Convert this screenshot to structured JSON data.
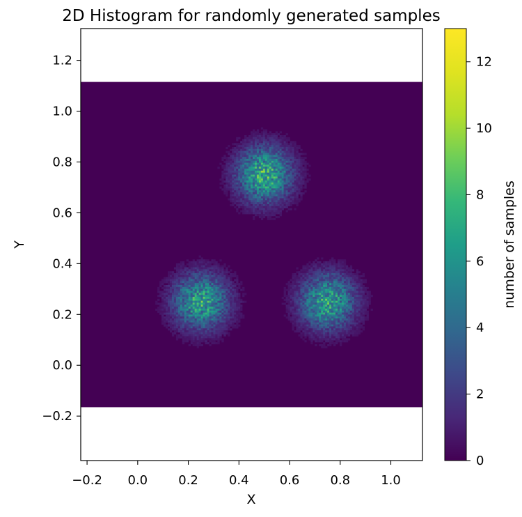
{
  "chart_data": {
    "type": "heatmap",
    "title": "2D Histogram for randomly generated samples",
    "xlabel": "X",
    "ylabel": "Y",
    "xlim": [
      -0.225,
      1.125
    ],
    "ylim": [
      -0.375,
      1.325
    ],
    "xticks": [
      {
        "v": -0.2,
        "label": "−0.2"
      },
      {
        "v": 0.0,
        "label": "0.0"
      },
      {
        "v": 0.2,
        "label": "0.2"
      },
      {
        "v": 0.4,
        "label": "0.4"
      },
      {
        "v": 0.6,
        "label": "0.6"
      },
      {
        "v": 0.8,
        "label": "0.8"
      },
      {
        "v": 1.0,
        "label": "1.0"
      }
    ],
    "yticks": [
      {
        "v": -0.2,
        "label": "−0.2"
      },
      {
        "v": 0.0,
        "label": "0.0"
      },
      {
        "v": 0.2,
        "label": "0.2"
      },
      {
        "v": 0.4,
        "label": "0.4"
      },
      {
        "v": 0.6,
        "label": "0.6"
      },
      {
        "v": 0.8,
        "label": "0.8"
      },
      {
        "v": 1.0,
        "label": "1.0"
      },
      {
        "v": 1.2,
        "label": "1.2"
      }
    ],
    "histogram_extent": {
      "x": [
        -0.225,
        1.125
      ],
      "y": [
        -0.165,
        1.115
      ]
    },
    "bins": 165,
    "clusters": [
      {
        "center": [
          0.5,
          0.75
        ],
        "peak": 13
      },
      {
        "center": [
          0.25,
          0.25
        ],
        "peak": 12
      },
      {
        "center": [
          0.75,
          0.25
        ],
        "peak": 12
      }
    ],
    "colorbar": {
      "label": "number of samples",
      "range": [
        0,
        13
      ],
      "colormap": "viridis",
      "ticks": [
        {
          "v": 0,
          "label": "0"
        },
        {
          "v": 2,
          "label": "2"
        },
        {
          "v": 4,
          "label": "4"
        },
        {
          "v": 6,
          "label": "6"
        },
        {
          "v": 8,
          "label": "8"
        },
        {
          "v": 10,
          "label": "10"
        },
        {
          "v": 12,
          "label": "12"
        }
      ]
    }
  }
}
